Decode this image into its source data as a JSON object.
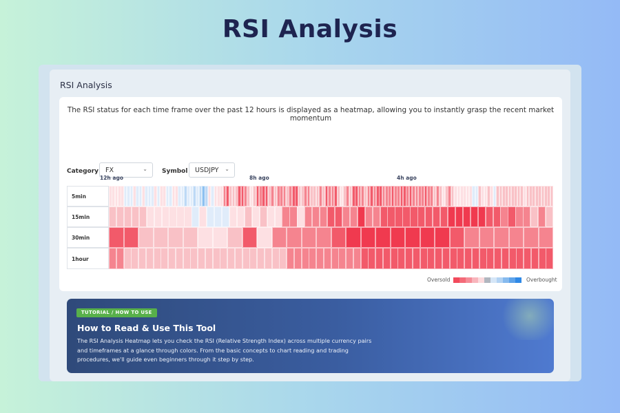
{
  "page": {
    "title": "RSI Analysis"
  },
  "panel": {
    "title": "RSI Analysis",
    "description": "The RSI status for each time frame over the past 12 hours is displayed as a heatmap, allowing you to instantly grasp the recent market momentum"
  },
  "filters": {
    "category": {
      "label": "Category :",
      "value": "FX"
    },
    "symbol": {
      "label": "Symbol :",
      "value": "USDJPY"
    }
  },
  "heatmap": {
    "time_labels": [
      "12h ago",
      "8h ago",
      "4h ago"
    ],
    "rows": [
      "5min",
      "15min",
      "30min",
      "1hour"
    ],
    "legend": {
      "left": "Oversold",
      "right": "Overbought",
      "colors": [
        "#f24a5c",
        "#f46a78",
        "#f58d98",
        "#f8b5bc",
        "#fbdadd",
        "#b0b6bf",
        "#d6e6f7",
        "#b3d3f3",
        "#86baee",
        "#5ea3ea",
        "#2f89e6"
      ]
    }
  },
  "chart_data": {
    "type": "heatmap",
    "x_labels": [
      "12h ago",
      "8h ago",
      "4h ago"
    ],
    "y_labels": [
      "5min",
      "15min",
      "30min",
      "1hour"
    ],
    "rows": [
      {
        "name": "5min",
        "levels": [
          0,
          0,
          0,
          0,
          0,
          -1,
          -1,
          -1,
          0,
          -1,
          -1,
          0,
          -1,
          -1,
          -1,
          0,
          -1,
          0,
          0,
          -1,
          -1,
          0,
          0,
          -1,
          -1,
          -2,
          -1,
          -1,
          -2,
          -1,
          -2,
          -3,
          -2,
          0,
          -1,
          0,
          0,
          0,
          2,
          3,
          1,
          1,
          1,
          3,
          3,
          2,
          1,
          0,
          1,
          3,
          2,
          3,
          3,
          1,
          2,
          1,
          2,
          2,
          2,
          1,
          2,
          3,
          3,
          1,
          1,
          2,
          2,
          1,
          1,
          1,
          2,
          1,
          3,
          2,
          2,
          3,
          1,
          0,
          1,
          2,
          1,
          3,
          3,
          2,
          2,
          1,
          2,
          3,
          2,
          3,
          3,
          2,
          2,
          2,
          3,
          2,
          2,
          3,
          3,
          2,
          3,
          2,
          2,
          2,
          2,
          3,
          2,
          2,
          1,
          2,
          1,
          0,
          1,
          2,
          1,
          0,
          0,
          0,
          0,
          0,
          0,
          -1,
          -1,
          1,
          0,
          0,
          1,
          0,
          -1,
          1,
          1,
          1,
          1,
          1,
          1,
          1,
          1,
          1,
          0,
          1,
          1,
          1,
          1,
          1,
          1,
          1,
          1,
          1
        ]
      },
      {
        "name": "15min",
        "levels": [
          1,
          1,
          1,
          1,
          1,
          0,
          0,
          0,
          0,
          0,
          0,
          -1,
          0,
          -1,
          -1,
          -1,
          0,
          0,
          1,
          0,
          1,
          0,
          0,
          2,
          2,
          0,
          2,
          2,
          2,
          3,
          3,
          2,
          2,
          4,
          2,
          2,
          3,
          3,
          3,
          3,
          3,
          3,
          3,
          3,
          3,
          4,
          4,
          4,
          4,
          4,
          3,
          3,
          2,
          3,
          2,
          2,
          1,
          2,
          1
        ]
      },
      {
        "name": "30min",
        "levels": [
          3,
          3,
          1,
          1,
          1,
          1,
          0,
          0,
          1,
          3,
          0,
          2,
          2,
          2,
          2,
          3,
          4,
          4,
          4,
          4,
          4,
          4,
          4,
          3,
          2,
          2,
          2,
          2,
          2,
          2
        ]
      },
      {
        "name": "1hour",
        "levels": [
          2,
          2,
          1,
          1,
          1,
          1,
          1,
          1,
          1,
          1,
          1,
          1,
          1,
          1,
          1,
          1,
          1,
          1,
          1,
          1,
          1,
          1,
          1,
          1,
          2,
          2,
          2,
          2,
          2,
          2,
          2,
          2,
          2,
          2,
          3,
          3,
          3,
          3,
          3,
          3,
          3,
          3,
          3,
          3,
          3,
          3,
          3,
          3,
          3,
          3,
          3,
          3,
          3,
          3,
          3,
          3,
          3,
          3,
          3,
          3
        ]
      }
    ]
  },
  "tutorial": {
    "badge": "TUTORIAL / HOW TO USE",
    "title": "How to Read & Use This Tool",
    "body": "The RSI Analysis Heatmap lets you check the RSI (Relative Strength Index) across multiple currency pairs and timeframes at a glance through colors. From the basic concepts to chart reading and trading procedures, we'll guide even beginners through it step by step."
  }
}
